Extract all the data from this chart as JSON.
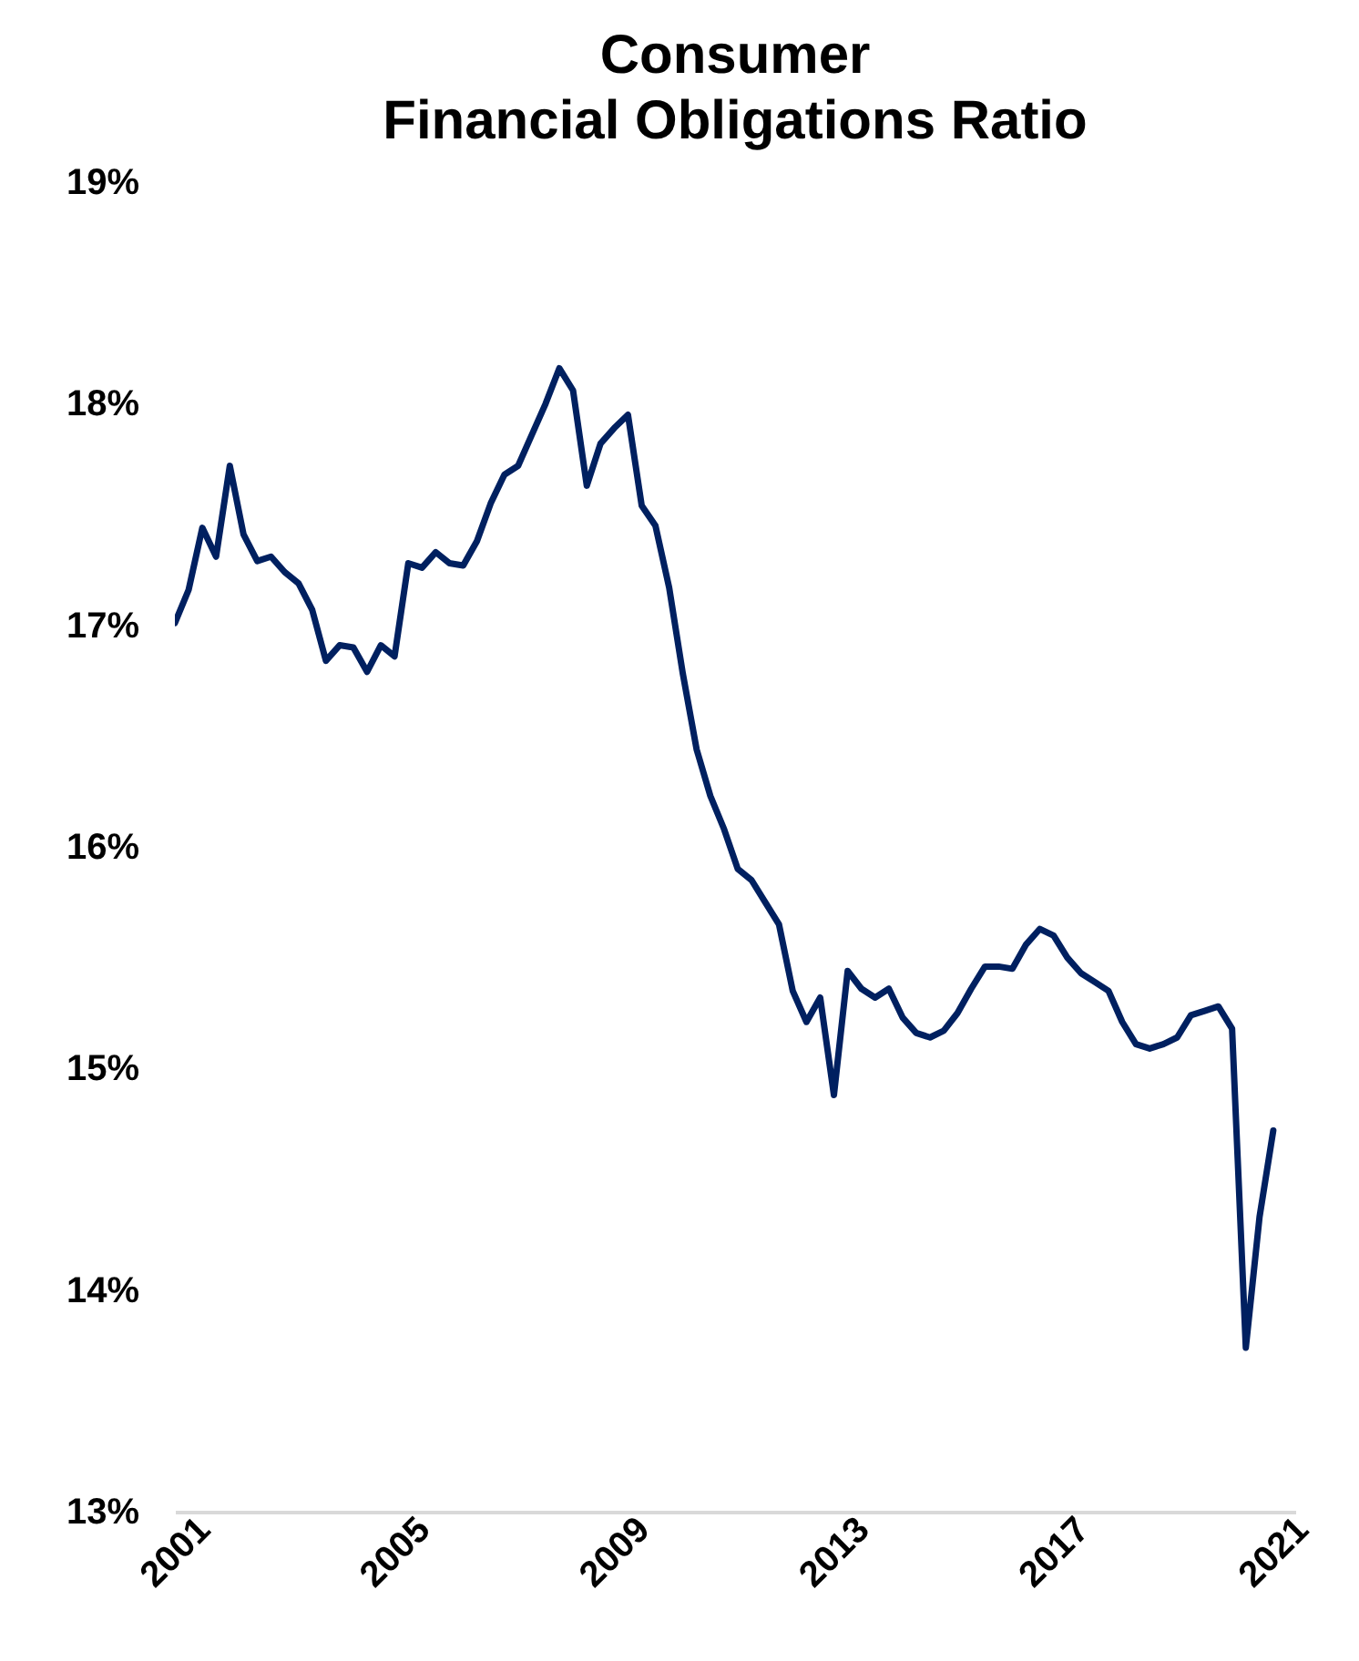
{
  "chart_data": {
    "type": "line",
    "title": [
      "Consumer",
      "Financial Obligations Ratio"
    ],
    "x": [
      2001,
      2001.25,
      2001.5,
      2001.75,
      2002,
      2002.25,
      2002.5,
      2002.75,
      2003,
      2003.25,
      2003.5,
      2003.75,
      2004,
      2004.25,
      2004.5,
      2004.75,
      2005,
      2005.25,
      2005.5,
      2005.75,
      2006,
      2006.25,
      2006.5,
      2006.75,
      2007,
      2007.25,
      2007.5,
      2007.75,
      2008,
      2008.25,
      2008.5,
      2008.75,
      2009,
      2009.25,
      2009.5,
      2009.75,
      2010,
      2010.25,
      2010.5,
      2010.75,
      2011,
      2011.25,
      2011.5,
      2011.75,
      2012,
      2012.25,
      2012.5,
      2012.75,
      2013,
      2013.25,
      2013.5,
      2013.75,
      2014,
      2014.25,
      2014.5,
      2014.75,
      2015,
      2015.25,
      2015.5,
      2015.75,
      2016,
      2016.25,
      2016.5,
      2016.75,
      2017,
      2017.25,
      2017.5,
      2017.75,
      2018,
      2018.25,
      2018.5,
      2018.75,
      2019,
      2019.25,
      2019.5,
      2019.75,
      2020,
      2020.25,
      2020.5,
      2020.75,
      2021
    ],
    "series": [
      {
        "color": "#002060",
        "values": [
          17.01,
          17.16,
          17.44,
          17.31,
          17.72,
          17.41,
          17.29,
          17.31,
          17.24,
          17.19,
          17.07,
          16.84,
          16.91,
          16.9,
          16.79,
          16.91,
          16.86,
          17.28,
          17.26,
          17.33,
          17.28,
          17.27,
          17.38,
          17.55,
          17.68,
          17.72,
          17.86,
          18.0,
          18.16,
          18.06,
          17.63,
          17.82,
          17.89,
          17.95,
          17.54,
          17.45,
          17.17,
          16.78,
          16.44,
          16.23,
          16.08,
          15.9,
          15.85,
          15.75,
          15.65,
          15.35,
          15.21,
          15.32,
          14.88,
          15.44,
          15.36,
          15.32,
          15.36,
          15.23,
          15.16,
          15.14,
          15.17,
          15.25,
          15.36,
          15.46,
          15.46,
          15.45,
          15.56,
          15.63,
          15.6,
          15.5,
          15.43,
          15.39,
          15.35,
          15.21,
          15.11,
          15.09,
          15.11,
          15.14,
          15.24,
          15.26,
          15.28,
          15.18,
          13.74,
          14.33,
          14.72
        ]
      }
    ],
    "xlim": [
      2001,
      2021.4
    ],
    "xticks": [
      2001,
      2005,
      2009,
      2013,
      2017,
      2021
    ],
    "ylim": [
      13,
      19
    ],
    "yticks": [
      {
        "value": 13,
        "label": "13%"
      },
      {
        "value": 14,
        "label": "14%"
      },
      {
        "value": 15,
        "label": "15%"
      },
      {
        "value": 16,
        "label": "16%"
      },
      {
        "value": 17,
        "label": "17%"
      },
      {
        "value": 18,
        "label": "18%"
      },
      {
        "value": 19,
        "label": "19%"
      }
    ],
    "grid": false,
    "legend": false,
    "marker": "none",
    "line_style": "solid"
  }
}
